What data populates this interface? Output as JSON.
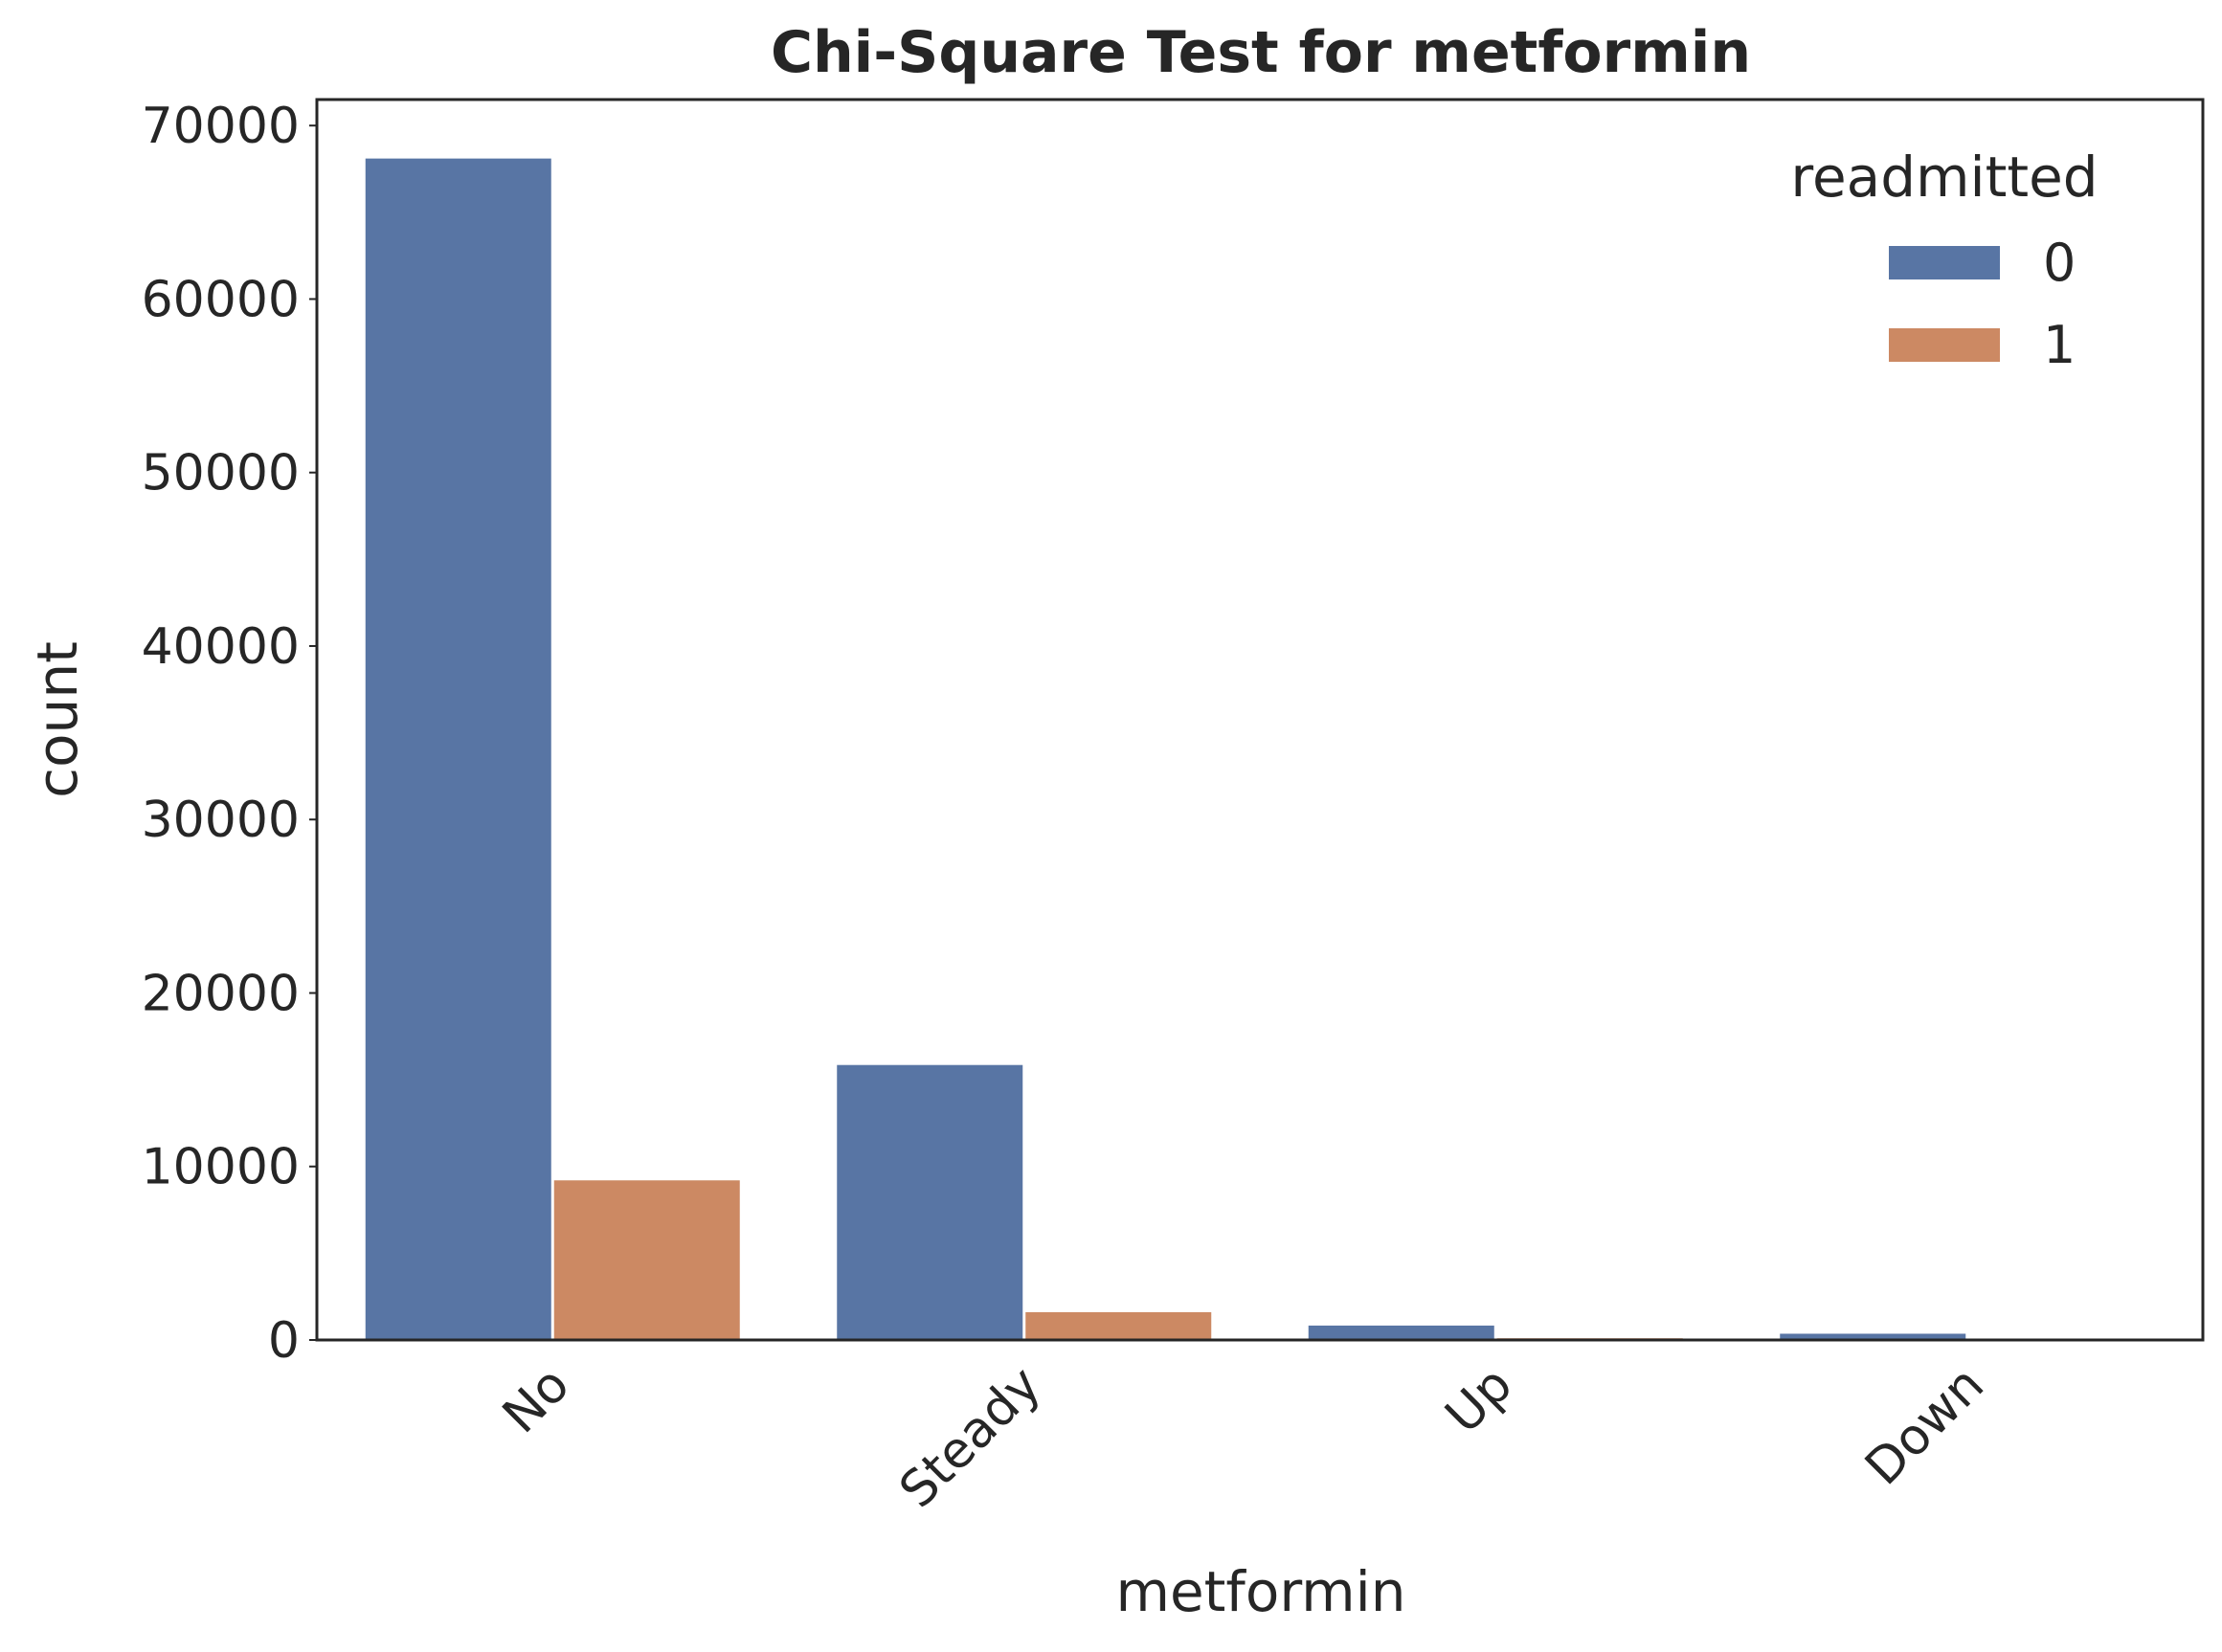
{
  "chart_data": {
    "type": "bar",
    "title": "Chi-Square Test for metformin",
    "xlabel": "metformin",
    "ylabel": "count",
    "categories": [
      "No",
      "Steady",
      "Up",
      "Down"
    ],
    "series": [
      {
        "name": "0",
        "color": "#5875a4",
        "values": [
          68100,
          15850,
          830,
          360
        ]
      },
      {
        "name": "1",
        "color": "#cc8963",
        "values": [
          9200,
          1600,
          100,
          40
        ]
      }
    ],
    "ylim": [
      0,
      71500
    ],
    "yticks": [
      0,
      10000,
      20000,
      30000,
      40000,
      50000,
      60000,
      70000
    ],
    "ytick_labels": [
      "0",
      "10000",
      "20000",
      "30000",
      "40000",
      "50000",
      "60000",
      "70000"
    ],
    "legend": {
      "title": "readmitted",
      "placement": "top-right"
    },
    "grid": false
  }
}
